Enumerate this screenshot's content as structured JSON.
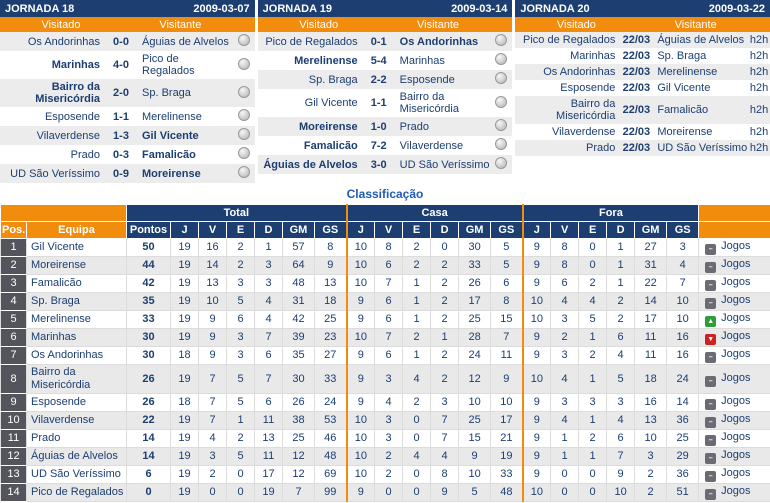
{
  "labels": {
    "h2h": "h2h"
  },
  "jornadas": [
    {
      "title": "JORNADA 18",
      "date": "2009-03-07",
      "col_home": "Visitado",
      "col_away": "Visitante",
      "matches": [
        {
          "home": "Os Andorinhas",
          "score": "0-0",
          "away": "Águias de Alvelos",
          "home_b": false,
          "away_b": false,
          "status": "played"
        },
        {
          "home": "Marinhas",
          "score": "4-0",
          "away": "Pico de Regalados",
          "home_b": true,
          "away_b": false,
          "status": "played"
        },
        {
          "home": "Bairro da Misericórdia",
          "score": "2-0",
          "away": "Sp. Braga",
          "home_b": true,
          "away_b": false,
          "status": "played"
        },
        {
          "home": "Esposende",
          "score": "1-1",
          "away": "Merelinense",
          "home_b": false,
          "away_b": false,
          "status": "played"
        },
        {
          "home": "Vilaverdense",
          "score": "1-3",
          "away": "Gil Vicente",
          "home_b": false,
          "away_b": true,
          "status": "played"
        },
        {
          "home": "Prado",
          "score": "0-3",
          "away": "Famalicão",
          "home_b": false,
          "away_b": true,
          "status": "played"
        },
        {
          "home": "UD São Veríssimo",
          "score": "0-9",
          "away": "Moreirense",
          "home_b": false,
          "away_b": true,
          "status": "played"
        }
      ]
    },
    {
      "title": "JORNADA 19",
      "date": "2009-03-14",
      "col_home": "Visitado",
      "col_away": "Visitante",
      "matches": [
        {
          "home": "Pico de Regalados",
          "score": "0-1",
          "away": "Os Andorinhas",
          "home_b": false,
          "away_b": true,
          "status": "played"
        },
        {
          "home": "Merelinense",
          "score": "5-4",
          "away": "Marinhas",
          "home_b": true,
          "away_b": false,
          "status": "played"
        },
        {
          "home": "Sp. Braga",
          "score": "2-2",
          "away": "Esposende",
          "home_b": false,
          "away_b": false,
          "status": "played"
        },
        {
          "home": "Gil Vicente",
          "score": "1-1",
          "away": "Bairro da Misericórdia",
          "home_b": false,
          "away_b": false,
          "status": "played"
        },
        {
          "home": "Moreirense",
          "score": "1-0",
          "away": "Prado",
          "home_b": true,
          "away_b": false,
          "status": "played"
        },
        {
          "home": "Famalicão",
          "score": "7-2",
          "away": "Vilaverdense",
          "home_b": true,
          "away_b": false,
          "status": "played"
        },
        {
          "home": "Águias de Alvelos",
          "score": "3-0",
          "away": "UD São Veríssimo",
          "home_b": true,
          "away_b": false,
          "status": "played"
        }
      ]
    },
    {
      "title": "JORNADA 20",
      "date": "2009-03-22",
      "col_home": "Visitado",
      "col_away": "Visitante",
      "matches": [
        {
          "home": "Pico de Regalados",
          "score": "22/03",
          "away": "Águias de Alvelos",
          "home_b": false,
          "away_b": false,
          "status": "scheduled"
        },
        {
          "home": "Marinhas",
          "score": "22/03",
          "away": "Sp. Braga",
          "home_b": false,
          "away_b": false,
          "status": "scheduled"
        },
        {
          "home": "Os Andorinhas",
          "score": "22/03",
          "away": "Merelinense",
          "home_b": false,
          "away_b": false,
          "status": "scheduled"
        },
        {
          "home": "Esposende",
          "score": "22/03",
          "away": "Gil Vicente",
          "home_b": false,
          "away_b": false,
          "status": "scheduled"
        },
        {
          "home": "Bairro da Misericórdia",
          "score": "22/03",
          "away": "Famalicão",
          "home_b": false,
          "away_b": false,
          "status": "scheduled"
        },
        {
          "home": "Vilaverdense",
          "score": "22/03",
          "away": "Moreirense",
          "home_b": false,
          "away_b": false,
          "status": "scheduled"
        },
        {
          "home": "Prado",
          "score": "22/03",
          "away": "UD São Veríssimo",
          "home_b": false,
          "away_b": false,
          "status": "scheduled"
        }
      ]
    }
  ],
  "classification": {
    "title": "Classificação",
    "group_headers": [
      "Total",
      "Casa",
      "Fora"
    ],
    "col_headers": {
      "pos": "Pos.",
      "team": "Equipa",
      "points": "Pontos",
      "stats": [
        "J",
        "V",
        "E",
        "D",
        "GM",
        "GS"
      ]
    },
    "jogos_label": "Jogos",
    "rows": [
      {
        "pos": 1,
        "team": "Gil Vicente",
        "points": 50,
        "total": [
          19,
          16,
          2,
          1,
          57,
          8
        ],
        "casa": [
          10,
          8,
          2,
          0,
          30,
          5
        ],
        "fora": [
          9,
          8,
          0,
          1,
          27,
          3
        ],
        "trend": "same"
      },
      {
        "pos": 2,
        "team": "Moreirense",
        "points": 44,
        "total": [
          19,
          14,
          2,
          3,
          64,
          9
        ],
        "casa": [
          10,
          6,
          2,
          2,
          33,
          5
        ],
        "fora": [
          9,
          8,
          0,
          1,
          31,
          4
        ],
        "trend": "same"
      },
      {
        "pos": 3,
        "team": "Famalicão",
        "points": 42,
        "total": [
          19,
          13,
          3,
          3,
          48,
          13
        ],
        "casa": [
          10,
          7,
          1,
          2,
          26,
          6
        ],
        "fora": [
          9,
          6,
          2,
          1,
          22,
          7
        ],
        "trend": "same"
      },
      {
        "pos": 4,
        "team": "Sp. Braga",
        "points": 35,
        "total": [
          19,
          10,
          5,
          4,
          31,
          18
        ],
        "casa": [
          9,
          6,
          1,
          2,
          17,
          8
        ],
        "fora": [
          10,
          4,
          4,
          2,
          14,
          10
        ],
        "trend": "same"
      },
      {
        "pos": 5,
        "team": "Merelinense",
        "points": 33,
        "total": [
          19,
          9,
          6,
          4,
          42,
          25
        ],
        "casa": [
          9,
          6,
          1,
          2,
          25,
          15
        ],
        "fora": [
          10,
          3,
          5,
          2,
          17,
          10
        ],
        "trend": "up"
      },
      {
        "pos": 6,
        "team": "Marinhas",
        "points": 30,
        "total": [
          19,
          9,
          3,
          7,
          39,
          23
        ],
        "casa": [
          10,
          7,
          2,
          1,
          28,
          7
        ],
        "fora": [
          9,
          2,
          1,
          6,
          11,
          16
        ],
        "trend": "down"
      },
      {
        "pos": 7,
        "team": "Os Andorinhas",
        "points": 30,
        "total": [
          18,
          9,
          3,
          6,
          35,
          27
        ],
        "casa": [
          9,
          6,
          1,
          2,
          24,
          11
        ],
        "fora": [
          9,
          3,
          2,
          4,
          11,
          16
        ],
        "trend": "same"
      },
      {
        "pos": 8,
        "team": "Bairro da Misericórdia",
        "points": 26,
        "total": [
          19,
          7,
          5,
          7,
          30,
          33
        ],
        "casa": [
          9,
          3,
          4,
          2,
          12,
          9
        ],
        "fora": [
          10,
          4,
          1,
          5,
          18,
          24
        ],
        "trend": "same"
      },
      {
        "pos": 9,
        "team": "Esposende",
        "points": 26,
        "total": [
          18,
          7,
          5,
          6,
          26,
          24
        ],
        "casa": [
          9,
          4,
          2,
          3,
          10,
          10
        ],
        "fora": [
          9,
          3,
          3,
          3,
          16,
          14
        ],
        "trend": "same"
      },
      {
        "pos": 10,
        "team": "Vilaverdense",
        "points": 22,
        "total": [
          19,
          7,
          1,
          11,
          38,
          53
        ],
        "casa": [
          10,
          3,
          0,
          7,
          25,
          17
        ],
        "fora": [
          9,
          4,
          1,
          4,
          13,
          36
        ],
        "trend": "same"
      },
      {
        "pos": 11,
        "team": "Prado",
        "points": 14,
        "total": [
          19,
          4,
          2,
          13,
          25,
          46
        ],
        "casa": [
          10,
          3,
          0,
          7,
          15,
          21
        ],
        "fora": [
          9,
          1,
          2,
          6,
          10,
          25
        ],
        "trend": "same"
      },
      {
        "pos": 12,
        "team": "Águias de Alvelos",
        "points": 14,
        "total": [
          19,
          3,
          5,
          11,
          12,
          48
        ],
        "casa": [
          10,
          2,
          4,
          4,
          9,
          19
        ],
        "fora": [
          9,
          1,
          1,
          7,
          3,
          29
        ],
        "trend": "same"
      },
      {
        "pos": 13,
        "team": "UD São Veríssimo",
        "points": 6,
        "total": [
          19,
          2,
          0,
          17,
          12,
          69
        ],
        "casa": [
          10,
          2,
          0,
          8,
          10,
          33
        ],
        "fora": [
          9,
          0,
          0,
          9,
          2,
          36
        ],
        "trend": "same"
      },
      {
        "pos": 14,
        "team": "Pico de Regalados",
        "points": 0,
        "total": [
          19,
          0,
          0,
          19,
          7,
          99
        ],
        "casa": [
          9,
          0,
          0,
          9,
          5,
          48
        ],
        "fora": [
          10,
          0,
          0,
          10,
          2,
          51
        ],
        "trend": "same"
      }
    ]
  }
}
